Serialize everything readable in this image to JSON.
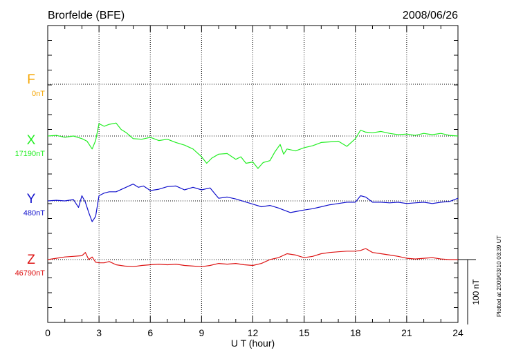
{
  "header": {
    "station": "Brorfelde (BFE)",
    "date": "2008/06/26"
  },
  "footer_note": "Plotted at 2009/03/10 03:39 UT",
  "colors": {
    "F": "#f5a500",
    "X": "#22ee22",
    "Y": "#1010cc",
    "Z": "#dd1111",
    "grid": "#000000"
  },
  "chart_data": {
    "type": "line",
    "xlabel": "U T (hour)",
    "xlim": [
      0,
      24
    ],
    "xticks": [
      "0",
      "3",
      "6",
      "9",
      "12",
      "15",
      "18",
      "21",
      "24"
    ],
    "y_units": "nT",
    "scale_bar": {
      "label": "100 nT",
      "value": 100
    },
    "series": [
      {
        "name": "F",
        "baseline_label": "0nT",
        "baseline": 0,
        "x": [],
        "y": []
      },
      {
        "name": "X",
        "baseline_label": "17190nT",
        "baseline": 17190,
        "x": [
          0,
          0.5,
          1,
          1.5,
          2,
          2.3,
          2.6,
          2.8,
          3,
          3.3,
          3.6,
          4,
          4.3,
          4.6,
          5,
          5.5,
          6,
          6.5,
          7,
          7.5,
          8,
          8.5,
          9,
          9.3,
          9.6,
          10,
          10.5,
          11,
          11.3,
          11.6,
          12,
          12.3,
          12.6,
          13,
          13.3,
          13.6,
          13.8,
          14,
          14.5,
          15,
          15.5,
          16,
          16.5,
          17,
          17.5,
          18,
          18.3,
          18.6,
          19,
          19.5,
          20,
          20.5,
          21,
          21.5,
          22,
          22.5,
          23,
          23.5,
          24
        ],
        "y": [
          17190,
          17191,
          17188,
          17190,
          17186,
          17182,
          17170,
          17183,
          17209,
          17205,
          17208,
          17210,
          17200,
          17195,
          17186,
          17185,
          17188,
          17183,
          17185,
          17180,
          17176,
          17170,
          17158,
          17148,
          17156,
          17162,
          17163,
          17154,
          17158,
          17148,
          17150,
          17140,
          17149,
          17152,
          17166,
          17177,
          17162,
          17170,
          17167,
          17172,
          17175,
          17180,
          17181,
          17182,
          17174,
          17186,
          17199,
          17196,
          17195,
          17197,
          17194,
          17192,
          17193,
          17191,
          17194,
          17192,
          17194,
          17191,
          17190
        ]
      },
      {
        "name": "Y",
        "baseline_label": "480nT",
        "baseline": 480,
        "x": [
          0,
          0.5,
          1,
          1.5,
          1.8,
          2,
          2.2,
          2.4,
          2.6,
          2.8,
          3,
          3.3,
          3.6,
          4,
          4.5,
          5,
          5.3,
          5.6,
          6,
          6.5,
          7,
          7.5,
          8,
          8.5,
          9,
          9.5,
          10,
          10.5,
          11,
          11.5,
          12,
          12.5,
          13,
          13.5,
          13.8,
          14.2,
          14.6,
          15,
          15.5,
          16,
          16.5,
          17,
          17.5,
          18,
          18.3,
          18.6,
          19,
          19.5,
          20,
          20.5,
          21,
          21.5,
          22,
          22.5,
          23,
          23.5,
          24
        ],
        "y": [
          480,
          481,
          480,
          482,
          470,
          488,
          478,
          462,
          448,
          456,
          488,
          492,
          494,
          494,
          500,
          506,
          501,
          503,
          496,
          498,
          502,
          503,
          497,
          501,
          497,
          500,
          484,
          486,
          483,
          479,
          475,
          471,
          473,
          469,
          466,
          462,
          464,
          466,
          468,
          471,
          474,
          476,
          478,
          478,
          488,
          486,
          478,
          478,
          477,
          478,
          476,
          477,
          478,
          476,
          478,
          479,
          484
        ]
      },
      {
        "name": "Z",
        "baseline_label": "46790nT",
        "baseline": 46790,
        "x": [
          0,
          0.5,
          1,
          1.5,
          2,
          2.2,
          2.4,
          2.6,
          2.8,
          3,
          3.3,
          3.6,
          4,
          4.5,
          5,
          5.5,
          6,
          6.5,
          7,
          7.5,
          8,
          8.5,
          9,
          9.5,
          10,
          10.5,
          11,
          11.5,
          12,
          12.5,
          13,
          13.5,
          14,
          14.5,
          15,
          15.5,
          16,
          16.5,
          17,
          17.5,
          18,
          18.3,
          18.6,
          19,
          19.5,
          20,
          20.5,
          21,
          21.5,
          22,
          22.5,
          23,
          23.5,
          24
        ],
        "y": [
          46790,
          46792,
          46794,
          46795,
          46796,
          46801,
          46790,
          46794,
          46786,
          46785,
          46785,
          46787,
          46782,
          46780,
          46779,
          46781,
          46782,
          46783,
          46782,
          46783,
          46781,
          46780,
          46779,
          46781,
          46784,
          46783,
          46784,
          46782,
          46781,
          46784,
          46790,
          46793,
          46799,
          46797,
          46793,
          46795,
          46799,
          46801,
          46802,
          46803,
          46803,
          46804,
          46807,
          46801,
          46799,
          46797,
          46795,
          46792,
          46791,
          46792,
          46793,
          46791,
          46790,
          46790
        ]
      }
    ]
  }
}
